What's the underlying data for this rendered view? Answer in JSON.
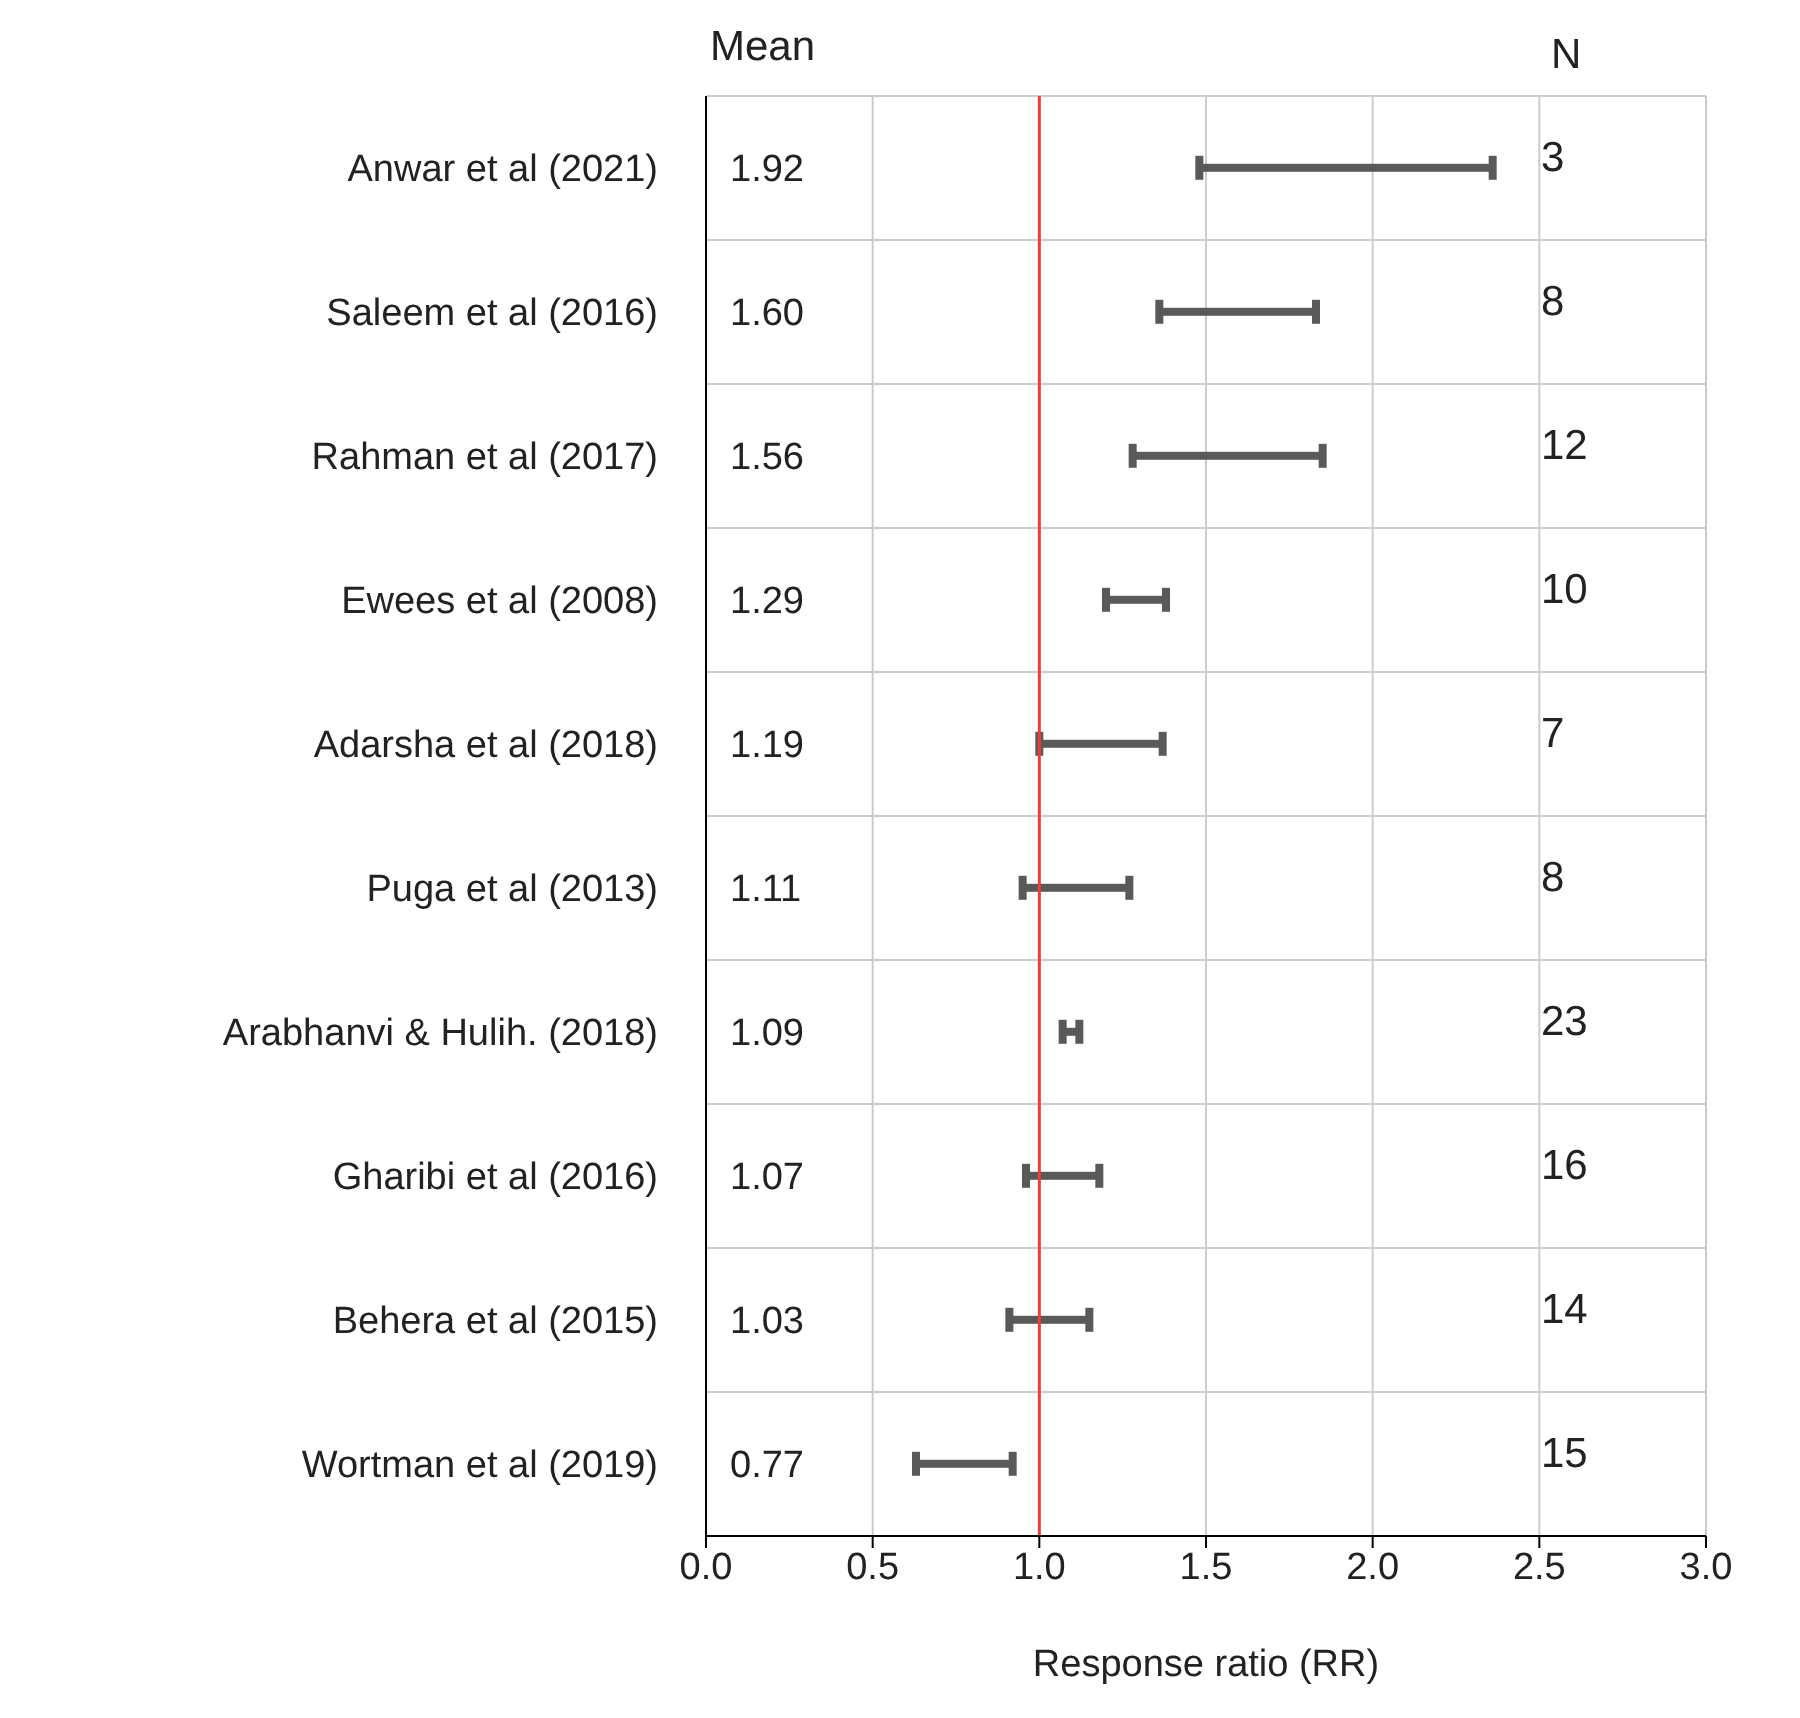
{
  "chart_data": {
    "type": "bar",
    "orientation": "horizontal",
    "xlabel": "Response ratio (RR)",
    "categories": [
      "Anwar et al (2021)",
      "Saleem et al (2016)",
      "Rahman et al (2017)",
      "Ewees et al (2008)",
      "Adarsha et al (2018)",
      "Puga et al (2013)",
      "Arabhanvi & Hulih. (2018)",
      "Gharibi et al (2016)",
      "Behera et al (2015)",
      "Wortman et al (2019)"
    ],
    "series": [
      {
        "color": "#595959",
        "base": [
          1.48,
          1.36,
          1.28,
          1.2,
          1.0,
          0.95,
          1.07,
          0.96,
          0.91,
          0.63
        ],
        "values": [
          0.88,
          0.47,
          0.57,
          0.18,
          0.37,
          0.32,
          0.05,
          0.22,
          0.24,
          0.29
        ]
      }
    ],
    "xlim": [
      0,
      3
    ],
    "xticks": [
      {
        "value": 0,
        "label": "0.0"
      },
      {
        "value": 0.5,
        "label": "0.5"
      },
      {
        "value": 1,
        "label": "1.0"
      },
      {
        "value": 1.5,
        "label": "1.5"
      },
      {
        "value": 2,
        "label": "2.0"
      },
      {
        "value": 2.5,
        "label": "2.5"
      },
      {
        "value": 3,
        "label": "3.0"
      }
    ],
    "ref_lines": [
      {
        "axis": "x",
        "value": 1,
        "color": "#e8413c"
      }
    ],
    "grid": true,
    "annotations": [
      "Mean",
      "1.92",
      "1.60",
      "1.56",
      "1.29",
      "1.19",
      "1.11",
      "1.09",
      "1.07",
      "1.03",
      "0.77",
      "N",
      "3",
      "8",
      "12",
      "10",
      "7",
      "8",
      "23",
      "16",
      "14",
      "15"
    ]
  }
}
